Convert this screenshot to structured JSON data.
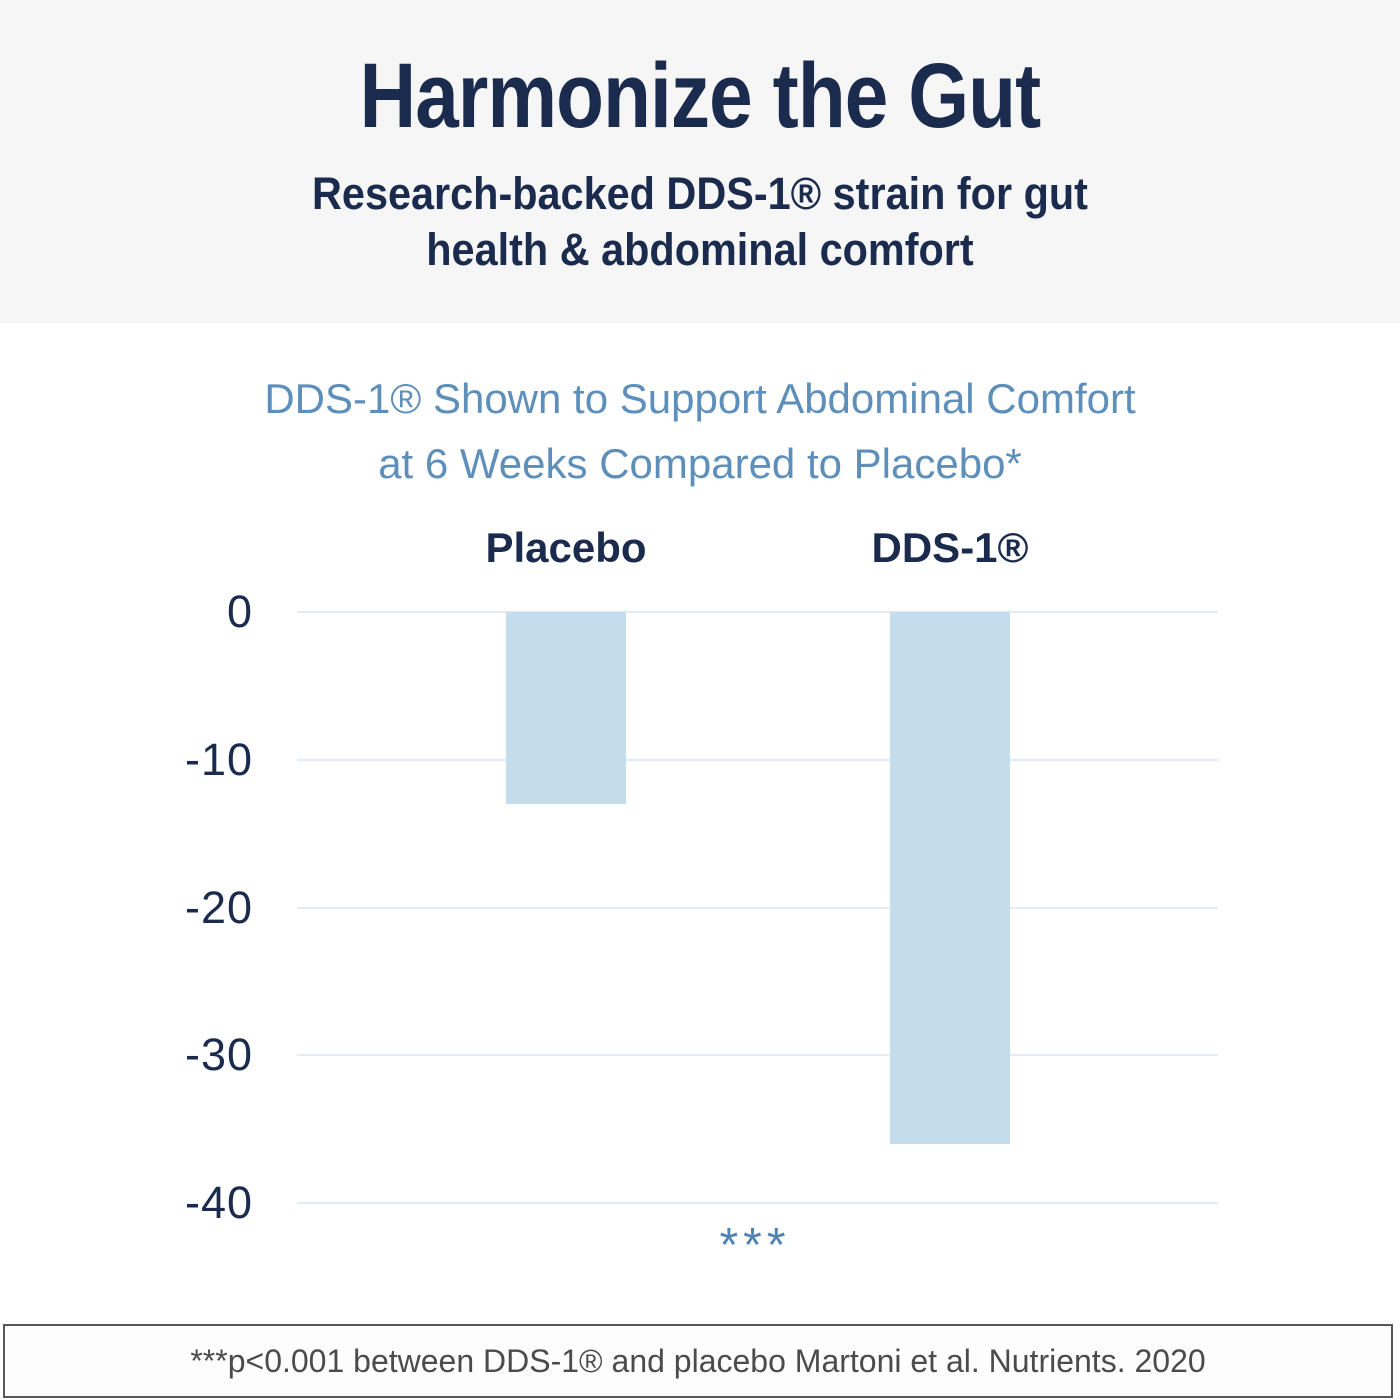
{
  "banner": {
    "title": "Harmonize the Gut",
    "subtitle_line1": "Research-backed DDS-1® strain for gut",
    "subtitle_line2": "health & abdominal comfort"
  },
  "chart": {
    "title_line1": "DDS-1® Shown to Support Abdominal Comfort",
    "title_line2": "at 6 Weeks Compared to Placebo*"
  },
  "chart_data": {
    "type": "bar",
    "title": "DDS-1® Shown to Support Abdominal Comfort at 6 Weeks Compared to Placebo*",
    "categories": [
      "Placebo",
      "DDS-1®"
    ],
    "values": [
      -13,
      -36
    ],
    "xlabel": "",
    "ylabel": "",
    "ylim": [
      -40,
      0
    ],
    "yticks": [
      0,
      -10,
      -20,
      -30,
      -40
    ],
    "grid": true,
    "legend": "none",
    "bar_color": "#c5dcec",
    "significance": "***",
    "significance_note": "***p<0.001 between DDS-1® and placebo"
  },
  "footer": {
    "note": "***p<0.001 between DDS-1® and placebo Martoni et al. Nutrients. 2020"
  },
  "colors": {
    "navy": "#1b2b4d",
    "steel_blue_title": "#5d8fba",
    "stars_blue": "#4d84b2",
    "bar_fill": "#c5dcec",
    "gridline": "#e2ebf3",
    "banner_background": "#f6f6f7",
    "footnote_border": "#58585a",
    "footnote_text": "#4b4b4d"
  }
}
